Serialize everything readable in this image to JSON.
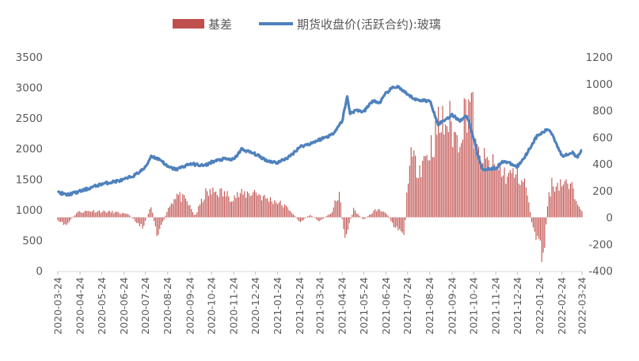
{
  "chart_data": {
    "type": "bar",
    "legend_position": "top",
    "grid": false,
    "y_left": {
      "range": [
        0,
        3500
      ],
      "ticks": [
        0,
        500,
        1000,
        1500,
        2000,
        2500,
        3000,
        3500
      ]
    },
    "y_right": {
      "range": [
        -400,
        1200
      ],
      "ticks": [
        -400,
        -200,
        0,
        200,
        400,
        600,
        800,
        1000,
        1200
      ]
    },
    "x_ticks": [
      "2020-03-24",
      "2020-04-24",
      "2020-05-24",
      "2020-06-24",
      "2020-07-24",
      "2020-08-24",
      "2020-09-24",
      "2020-10-24",
      "2020-11-24",
      "2020-12-24",
      "2021-01-24",
      "2021-02-24",
      "2021-03-24",
      "2021-04-24",
      "2021-05-24",
      "2021-06-24",
      "2021-07-24",
      "2021-08-24",
      "2021-09-24",
      "2021-10-24",
      "2021-11-24",
      "2021-12-24",
      "2022-01-24",
      "2022-02-24",
      "2022-03-24"
    ],
    "series": [
      {
        "name": "基差",
        "type": "bar",
        "axis": "right",
        "color": "#C0504D",
        "key_points": [
          [
            "2020-03-24",
            -30
          ],
          [
            "2020-04-05",
            -60
          ],
          [
            "2020-04-20",
            40
          ],
          [
            "2020-05-10",
            50
          ],
          [
            "2020-06-10",
            40
          ],
          [
            "2020-07-01",
            20
          ],
          [
            "2020-07-20",
            -80
          ],
          [
            "2020-08-01",
            80
          ],
          [
            "2020-08-10",
            -150
          ],
          [
            "2020-08-24",
            60
          ],
          [
            "2020-09-05",
            180
          ],
          [
            "2020-09-20",
            120
          ],
          [
            "2020-10-01",
            10
          ],
          [
            "2020-10-15",
            180
          ],
          [
            "2020-11-01",
            200
          ],
          [
            "2020-11-20",
            160
          ],
          [
            "2020-12-10",
            180
          ],
          [
            "2020-12-24",
            200
          ],
          [
            "2021-01-05",
            150
          ],
          [
            "2021-01-24",
            120
          ],
          [
            "2021-02-10",
            60
          ],
          [
            "2021-02-24",
            -40
          ],
          [
            "2021-03-10",
            20
          ],
          [
            "2021-03-24",
            -30
          ],
          [
            "2021-04-10",
            40
          ],
          [
            "2021-04-20",
            200
          ],
          [
            "2021-04-27",
            -170
          ],
          [
            "2021-05-10",
            60
          ],
          [
            "2021-05-24",
            -20
          ],
          [
            "2021-06-10",
            60
          ],
          [
            "2021-06-24",
            40
          ],
          [
            "2021-07-05",
            -60
          ],
          [
            "2021-07-20",
            -120
          ],
          [
            "2021-07-26",
            440
          ],
          [
            "2021-08-10",
            400
          ],
          [
            "2021-08-24",
            520
          ],
          [
            "2021-09-05",
            700
          ],
          [
            "2021-09-20",
            740
          ],
          [
            "2021-10-01",
            590
          ],
          [
            "2021-10-20",
            970
          ],
          [
            "2021-10-28",
            480
          ],
          [
            "2021-11-10",
            420
          ],
          [
            "2021-11-24",
            380
          ],
          [
            "2021-12-10",
            320
          ],
          [
            "2021-12-24",
            340
          ],
          [
            "2022-01-05",
            240
          ],
          [
            "2022-01-15",
            -100
          ],
          [
            "2022-01-24",
            -200
          ],
          [
            "2022-01-29",
            -350
          ],
          [
            "2022-02-05",
            160
          ],
          [
            "2022-02-10",
            250
          ],
          [
            "2022-02-24",
            270
          ],
          [
            "2022-03-10",
            220
          ],
          [
            "2022-03-24",
            60
          ]
        ]
      },
      {
        "name": "期货收盘价(活跃合约):玻璃",
        "type": "line",
        "axis": "left",
        "color": "#4F81BD",
        "key_points": [
          [
            "2020-03-24",
            1290
          ],
          [
            "2020-04-05",
            1240
          ],
          [
            "2020-04-24",
            1300
          ],
          [
            "2020-05-24",
            1420
          ],
          [
            "2020-06-24",
            1490
          ],
          [
            "2020-07-10",
            1570
          ],
          [
            "2020-07-24",
            1690
          ],
          [
            "2020-08-01",
            1880
          ],
          [
            "2020-08-15",
            1810
          ],
          [
            "2020-08-24",
            1700
          ],
          [
            "2020-09-05",
            1660
          ],
          [
            "2020-09-24",
            1750
          ],
          [
            "2020-10-15",
            1720
          ],
          [
            "2020-10-24",
            1780
          ],
          [
            "2020-11-10",
            1830
          ],
          [
            "2020-11-24",
            1820
          ],
          [
            "2020-12-05",
            1990
          ],
          [
            "2020-12-24",
            1910
          ],
          [
            "2021-01-10",
            1800
          ],
          [
            "2021-01-24",
            1770
          ],
          [
            "2021-02-10",
            1870
          ],
          [
            "2021-02-24",
            2030
          ],
          [
            "2021-03-10",
            2080
          ],
          [
            "2021-03-24",
            2150
          ],
          [
            "2021-04-10",
            2230
          ],
          [
            "2021-04-24",
            2450
          ],
          [
            "2021-05-01",
            2850
          ],
          [
            "2021-05-05",
            2580
          ],
          [
            "2021-05-15",
            2630
          ],
          [
            "2021-05-24",
            2600
          ],
          [
            "2021-06-05",
            2780
          ],
          [
            "2021-06-15",
            2750
          ],
          [
            "2021-06-24",
            2900
          ],
          [
            "2021-07-01",
            2980
          ],
          [
            "2021-07-10",
            3020
          ],
          [
            "2021-07-24",
            2880
          ],
          [
            "2021-08-05",
            2800
          ],
          [
            "2021-08-24",
            2780
          ],
          [
            "2021-09-05",
            2400
          ],
          [
            "2021-09-15",
            2480
          ],
          [
            "2021-09-24",
            2550
          ],
          [
            "2021-10-05",
            2460
          ],
          [
            "2021-10-15",
            2540
          ],
          [
            "2021-10-24",
            2170
          ],
          [
            "2021-10-30",
            1900
          ],
          [
            "2021-11-05",
            1660
          ],
          [
            "2021-11-24",
            1680
          ],
          [
            "2021-12-05",
            1800
          ],
          [
            "2021-12-24",
            1700
          ],
          [
            "2022-01-05",
            1900
          ],
          [
            "2022-01-20",
            2200
          ],
          [
            "2022-02-05",
            2320
          ],
          [
            "2022-02-10",
            2250
          ],
          [
            "2022-02-24",
            1880
          ],
          [
            "2022-03-10",
            1940
          ],
          [
            "2022-03-17",
            1850
          ],
          [
            "2022-03-24",
            1980
          ]
        ]
      }
    ]
  }
}
